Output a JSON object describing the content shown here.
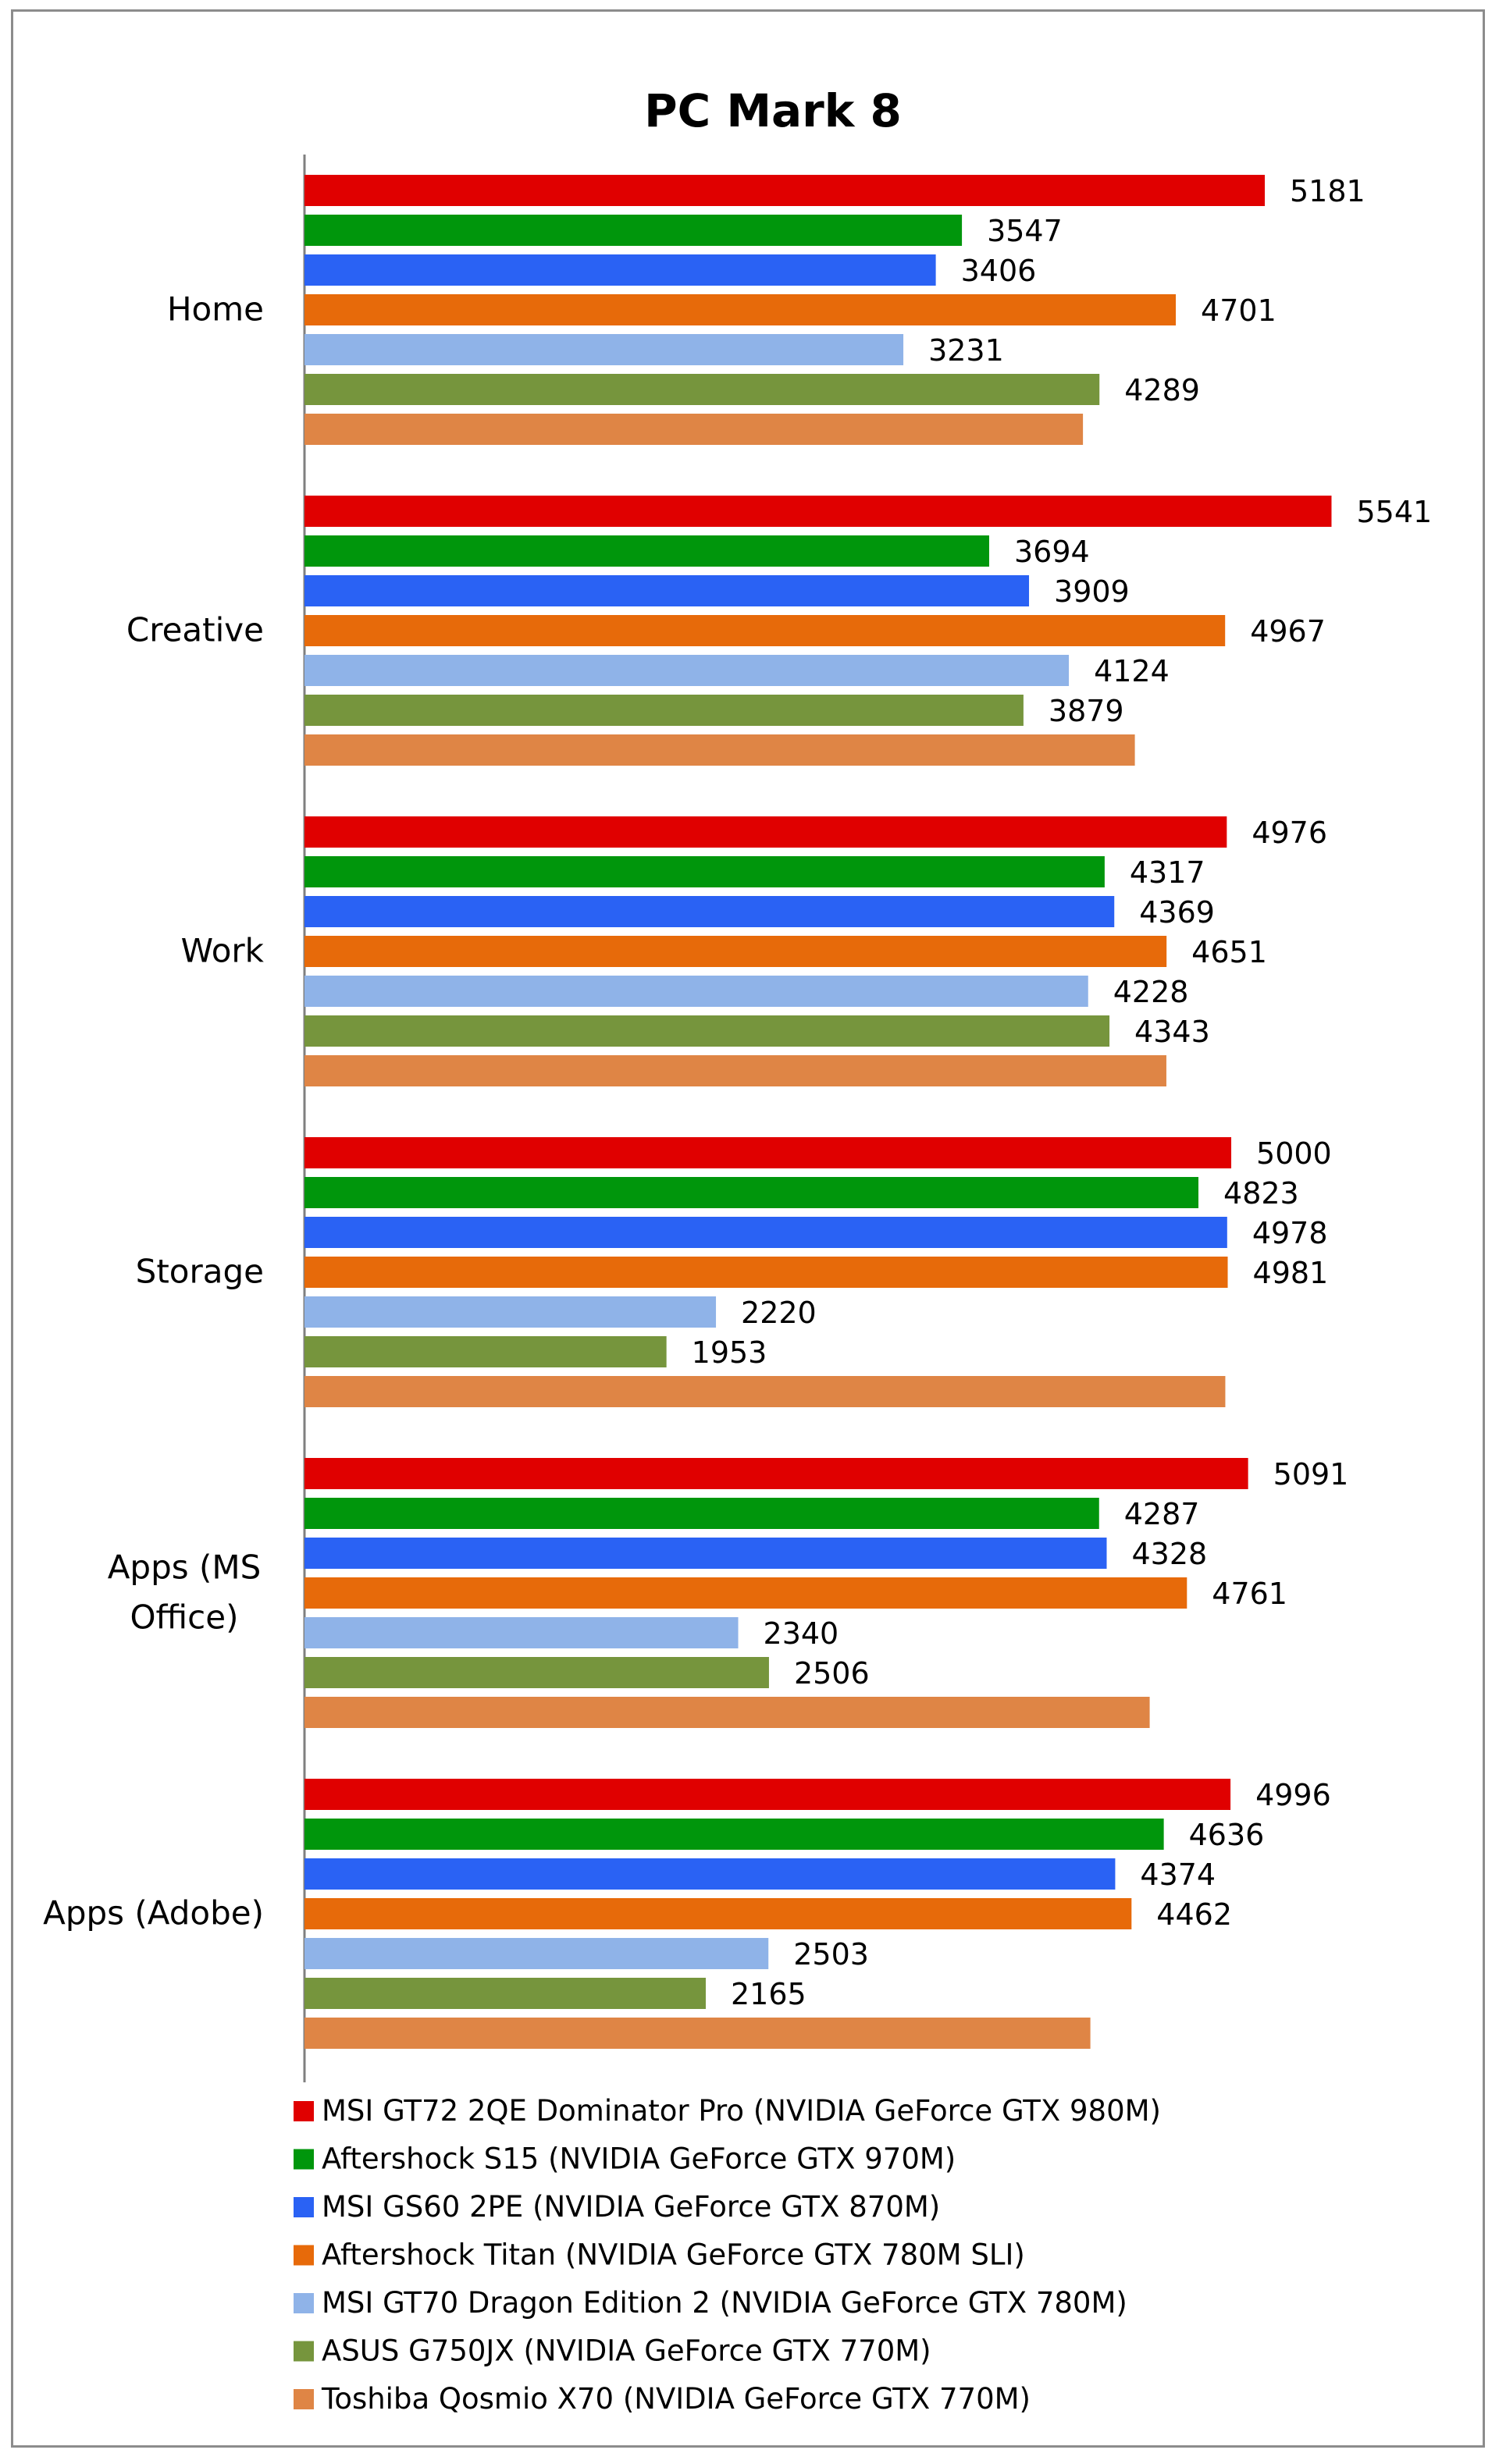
{
  "chart_data": {
    "type": "bar",
    "orientation": "horizontal",
    "title": "PC Mark 8",
    "categories": [
      "Home",
      "Creative",
      "Work",
      "Storage",
      "Apps (MS Office)",
      "Apps (Adobe)"
    ],
    "category_lines": [
      [
        "Home"
      ],
      [
        "Creative"
      ],
      [
        "Work"
      ],
      [
        "Storage"
      ],
      [
        "Apps (MS",
        "Office)"
      ],
      [
        "Apps (Adobe)"
      ]
    ],
    "xlim": [
      0,
      6000
    ],
    "grid": false,
    "legend_position": "bottom",
    "series": [
      {
        "name": "MSI GT72 2QE Dominator Pro (NVIDIA GeForce GTX 980M)",
        "color": "#e00000",
        "values": [
          5181,
          5541,
          4976,
          5000,
          5091,
          4996
        ],
        "labels": [
          "5181",
          "5541",
          "4976",
          "5000",
          "5091",
          "4996"
        ]
      },
      {
        "name": "Aftershock S15 (NVIDIA GeForce GTX 970M)",
        "color": "#00960c",
        "values": [
          3547,
          3694,
          4317,
          4823,
          4287,
          4636
        ],
        "labels": [
          "3547",
          "3694",
          "4317",
          "4823",
          "4287",
          "4636"
        ]
      },
      {
        "name": "MSI GS60 2PE (NVIDIA GeForce GTX 870M)",
        "color": "#2a62f4",
        "values": [
          3406,
          3909,
          4369,
          4978,
          4328,
          4374
        ],
        "labels": [
          "3406",
          "3909",
          "4369",
          "4978",
          "4328",
          "4374"
        ]
      },
      {
        "name": "Aftershock Titan (NVIDIA GeForce GTX 780M SLI)",
        "color": "#e76a0a",
        "values": [
          4701,
          4967,
          4651,
          4981,
          4761,
          4462
        ],
        "labels": [
          "4701",
          "4967",
          "4651",
          "4981",
          "4761",
          "4462"
        ]
      },
      {
        "name": "MSI GT70 Dragon Edition 2 (NVIDIA GeForce GTX 780M)",
        "color": "#8fb3e8",
        "values": [
          3231,
          4124,
          4228,
          2220,
          2340,
          2503
        ],
        "labels": [
          "3231",
          "4124",
          "4228",
          "2220",
          "2340",
          "2503"
        ]
      },
      {
        "name": "ASUS G750JX (NVIDIA GeForce GTX 770M)",
        "color": "#76953d",
        "values": [
          4289,
          3879,
          4343,
          1953,
          2506,
          2165
        ],
        "labels": [
          "4289",
          "3879",
          "4343",
          "1953",
          "2506",
          "2165"
        ]
      },
      {
        "name": "Toshiba Qosmio X70 (NVIDIA GeForce GTX 770M)",
        "color": "#df8545",
        "values": [
          4200,
          4480,
          4650,
          4968,
          4560,
          4240
        ],
        "labels": [
          "",
          "",
          "",
          "",
          "",
          ""
        ]
      }
    ]
  }
}
